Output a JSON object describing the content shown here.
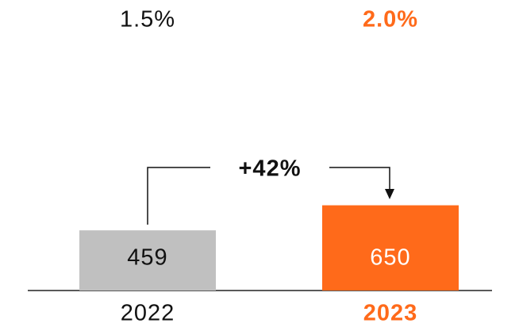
{
  "chart_data": {
    "type": "bar",
    "categories": [
      "2022",
      "2023"
    ],
    "values": [
      459,
      650
    ],
    "colors": [
      "#c0c0c0",
      "#ff6a1a"
    ],
    "label_colors": [
      "#111111",
      "#ff6a1a"
    ],
    "value_label_colors": [
      "#111111",
      "#ffffff"
    ],
    "ratios": {
      "values": [
        1.5,
        2.0
      ],
      "value_labels": [
        "1.5%",
        "2.0%"
      ]
    },
    "annotation": "+42%"
  }
}
